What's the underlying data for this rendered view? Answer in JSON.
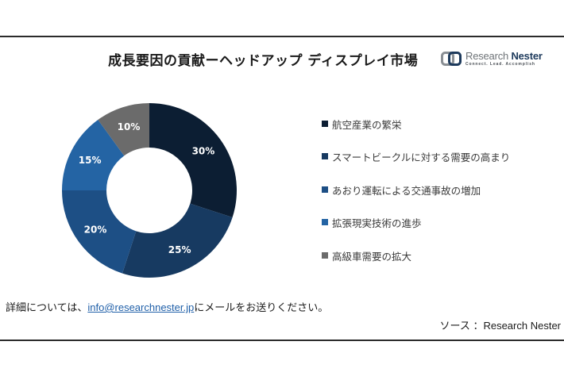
{
  "header": {
    "title": "成長要因の貢献ーヘッドアップ ディスプレイ市場",
    "logo": {
      "name_part1": "Research ",
      "name_part2": "Nester",
      "tagline": "Connect. Lead. Accomplish"
    }
  },
  "chart_data": {
    "type": "pie",
    "variant": "donut",
    "title": "成長要因の貢献ーヘッドアップ ディスプレイ市場",
    "categories": [
      "航空産業の繁栄",
      "スマートビークルに対する需要の高まり",
      "あおり運転による交通事故の増加",
      "拡張現実技術の進歩",
      "高級車需要の拡大"
    ],
    "values": [
      30,
      25,
      20,
      15,
      10
    ],
    "labels": [
      "30%",
      "25%",
      "20%",
      "15%",
      "10%"
    ],
    "colors": [
      "#0c1e33",
      "#173a61",
      "#1d4f85",
      "#2464a4",
      "#6b6b6b"
    ],
    "legend_position": "right",
    "start_angle_deg": 0,
    "direction": "clockwise"
  },
  "legend": {
    "items": [
      {
        "label": "航空産業の繁栄",
        "color": "#0c1e33"
      },
      {
        "label": "スマートビークルに対する需要の高まり",
        "color": "#173a61"
      },
      {
        "label": "あおり運転による交通事故の増加",
        "color": "#1d4f85"
      },
      {
        "label": "拡張現実技術の進歩",
        "color": "#2464a4"
      },
      {
        "label": "高級車需要の拡大",
        "color": "#6b6b6b"
      }
    ]
  },
  "footer": {
    "contact_prefix": "詳細については、",
    "contact_email": "info@researchnester.jp",
    "contact_suffix": "にメールをお送りください。",
    "source": "ソース ：Research Nester"
  }
}
